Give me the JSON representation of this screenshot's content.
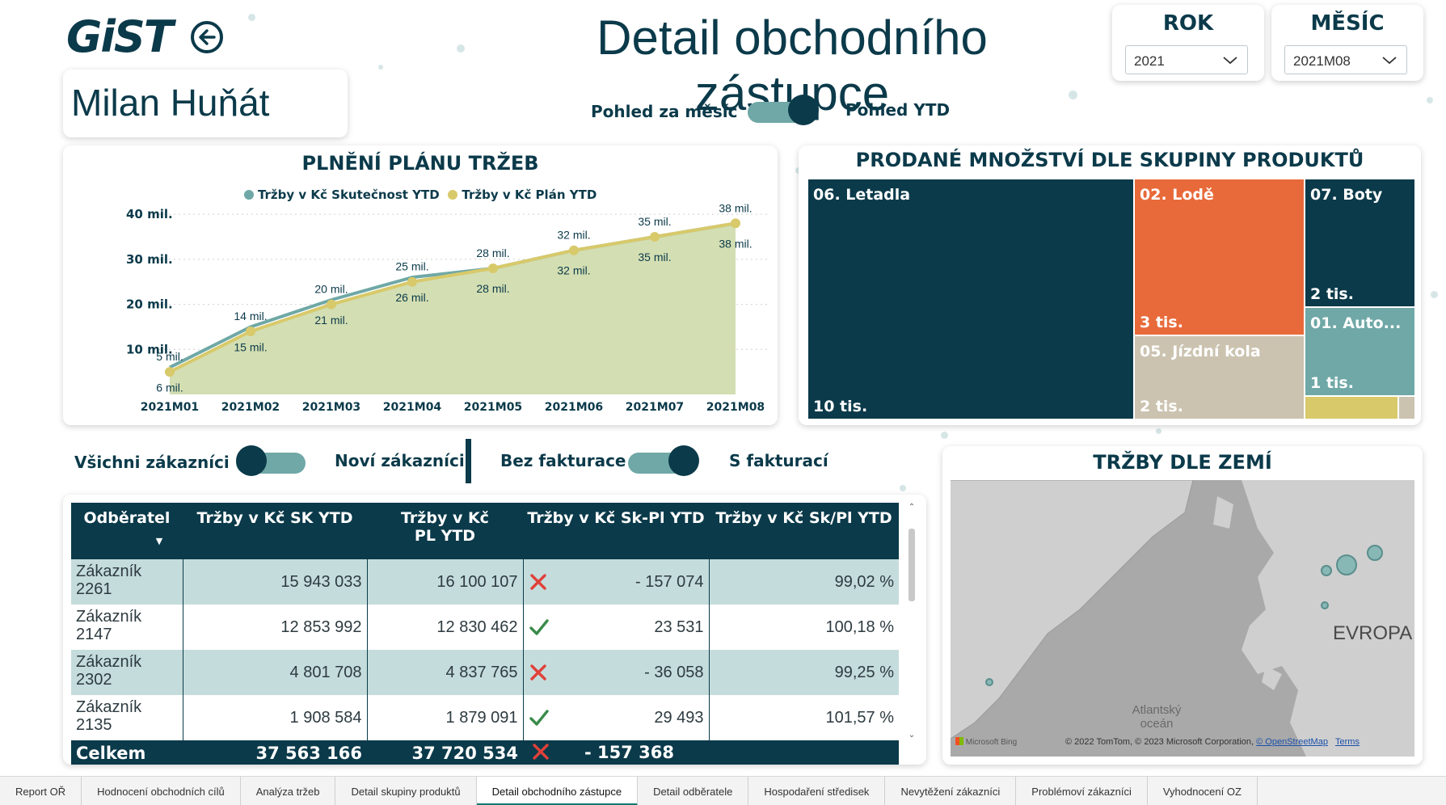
{
  "header": {
    "logo_text": "GiST",
    "title": "Detail obchodního zástupce"
  },
  "filters": {
    "year": {
      "label": "ROK",
      "value": "2021"
    },
    "month": {
      "label": "MĚSÍC",
      "value": "2021M08"
    }
  },
  "rep_name": "Milan Huňát",
  "view_toggle": {
    "left_label": "Pohled za měsíc",
    "right_label": "Pohled YTD",
    "state": "right"
  },
  "customer_toggle": {
    "left_label": "Všichni zákazníci",
    "right_label": "Noví zákazníci",
    "state": "left"
  },
  "billing_toggle": {
    "left_label": "Bez fakturace",
    "right_label": "S fakturací",
    "state": "right"
  },
  "chart_data": {
    "type": "area",
    "title": "PLNĚNÍ PLÁNU TRŽEB",
    "categories": [
      "2021M01",
      "2021M02",
      "2021M03",
      "2021M04",
      "2021M05",
      "2021M06",
      "2021M07",
      "2021M08"
    ],
    "series": [
      {
        "name": "Tržby v Kč Skutečnost YTD",
        "color": "#6fa8a6",
        "values": [
          6,
          15,
          21,
          26,
          28,
          32,
          35,
          38
        ],
        "labels": [
          "6 mil.",
          "15 mil.",
          "21 mil.",
          "26 mil.",
          "28 mil.",
          "32 mil.",
          "35 mil.",
          "38 mil."
        ]
      },
      {
        "name": "Tržby v Kč Plán YTD",
        "color": "#d8c96a",
        "values": [
          5,
          14,
          20,
          25,
          28,
          32,
          35,
          38
        ],
        "labels": [
          "5 mil.",
          "14 mil.",
          "20 mil.",
          "25 mil.",
          "28 mil.",
          "32 mil.",
          "35 mil.",
          "38 mil."
        ]
      }
    ],
    "y_ticks": [
      "10 mil.",
      "20 mil.",
      "30 mil.",
      "40 mil."
    ],
    "y_tick_values": [
      10,
      20,
      30,
      40
    ],
    "ylim": [
      0,
      42
    ],
    "grid": true,
    "legend": "top-center"
  },
  "treemap": {
    "title": "PRODANÉ MNOŽSTVÍ DLE SKUPINY PRODUKTŮ",
    "items": [
      {
        "label": "06. Letadla",
        "value": "10 tis.",
        "color": "#0b3a4a"
      },
      {
        "label": "02. Lodě",
        "value": "3 tis.",
        "color": "#e86a3a"
      },
      {
        "label": "07. Boty",
        "value": "2 tis.",
        "color": "#0b3a4a"
      },
      {
        "label": "05. Jízdní kola",
        "value": "2 tis.",
        "color": "#cbc3b0"
      },
      {
        "label": "01. Auto...",
        "value": "1 tis.",
        "color": "#6fa8a6"
      }
    ],
    "extra_colors": [
      "#d8c96a",
      "#cbc3b0"
    ]
  },
  "table": {
    "columns": [
      "Odběratel",
      "Tržby v Kč SK YTD",
      "Tržby v Kč PL YTD",
      "Tržby v Kč Sk-Pl YTD",
      "Tržby v Kč Sk/Pl YTD"
    ],
    "rows": [
      {
        "customer": "Zákazník 2261",
        "sk": "15 943 033",
        "pl": "16 100 107",
        "status": "bad",
        "diff": "- 157 074",
        "ratio": "99,02 %"
      },
      {
        "customer": "Zákazník 2147",
        "sk": "12 853 992",
        "pl": "12 830 462",
        "status": "good",
        "diff": "23 531",
        "ratio": "100,18 %"
      },
      {
        "customer": "Zákazník 2302",
        "sk": "4 801 708",
        "pl": "4 837 765",
        "status": "bad",
        "diff": "- 36 058",
        "ratio": "99,25 %"
      },
      {
        "customer": "Zákazník 2135",
        "sk": "1 908 584",
        "pl": "1 879 091",
        "status": "good",
        "diff": "29 493",
        "ratio": "101,57 %"
      }
    ],
    "total": {
      "label": "Celkem",
      "sk": "37 563 166",
      "pl": "37 720 534",
      "status": "bad",
      "diff": "- 157 368"
    }
  },
  "map": {
    "title": "TRŽBY DLE ZEMÍ",
    "region_label": "EVROPA",
    "ocean_label_1": "Atlantský",
    "ocean_label_2": "oceán",
    "provider": "Microsoft Bing",
    "attribution": "© 2022 TomTom, © 2023 Microsoft Corporation,",
    "osm_link": "© OpenStreetMap",
    "terms_link": "Terms"
  },
  "tabs": [
    {
      "label": "Report OŘ",
      "active": false
    },
    {
      "label": "Hodnocení obchodních cílů",
      "active": false
    },
    {
      "label": "Analýza tržeb",
      "active": false
    },
    {
      "label": "Detail skupiny produktů",
      "active": false
    },
    {
      "label": "Detail obchodního zástupce",
      "active": true
    },
    {
      "label": "Detail odběratele",
      "active": false
    },
    {
      "label": "Hospodaření středisek",
      "active": false
    },
    {
      "label": "Nevytěžení zákazníci",
      "active": false
    },
    {
      "label": "Problémoví zákazníci",
      "active": false
    },
    {
      "label": "Vyhodnocení OZ",
      "active": false
    }
  ]
}
